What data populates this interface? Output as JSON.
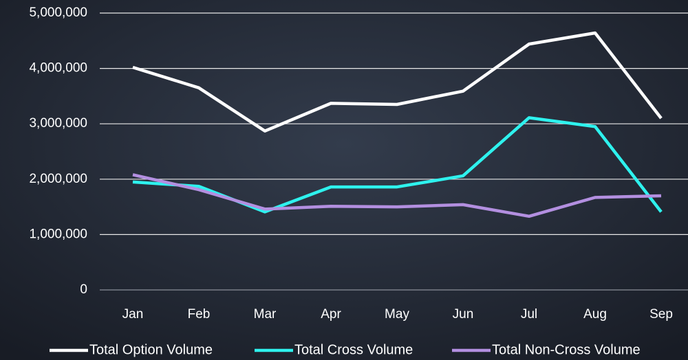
{
  "chart_data": {
    "type": "line",
    "categories": [
      "Jan",
      "Feb",
      "Mar",
      "Apr",
      "May",
      "Jun",
      "Jul",
      "Aug",
      "Sep"
    ],
    "series": [
      {
        "name": "Total Option Volume",
        "color": "#ffffff",
        "values": [
          4020000,
          3650000,
          2870000,
          3370000,
          3350000,
          3590000,
          4440000,
          4640000,
          3100000
        ]
      },
      {
        "name": "Total Cross Volume",
        "color": "#2ef2ee",
        "values": [
          1950000,
          1870000,
          1410000,
          1860000,
          1860000,
          2060000,
          3110000,
          2950000,
          1410000
        ]
      },
      {
        "name": "Total Non-Cross Volume",
        "color": "#b38fe0",
        "values": [
          2080000,
          1810000,
          1460000,
          1510000,
          1500000,
          1540000,
          1330000,
          1670000,
          1700000
        ]
      }
    ],
    "ylim": [
      0,
      5000000
    ],
    "yticks": [
      0,
      {
        "value": 1000000,
        "label": "1,000,000"
      },
      {
        "value": 2000000,
        "label": "2,000,000"
      },
      {
        "value": 3000000,
        "label": "3,000,000"
      },
      {
        "value": 4000000,
        "label": "4,000,000"
      },
      {
        "value": 5000000,
        "label": "5,000,000"
      }
    ],
    "grid": true,
    "legend": "bottom"
  }
}
